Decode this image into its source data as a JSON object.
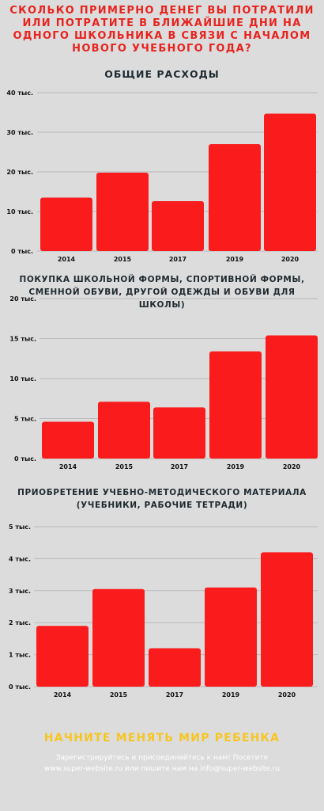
{
  "headline": "СКОЛЬКО ПРИМЕРНО ДЕНЕГ ВЫ ПОТРАТИЛИ ИЛИ ПОТРАТИТЕ В БЛИЖАЙШИЕ ДНИ НА ОДНОГО ШКОЛЬНИКА В СВЯЗИ С НАЧАЛОМ НОВОГО УЧЕБНОГО ГОДА?",
  "chart_data": [
    {
      "type": "bar",
      "title": "ОБЩИЕ РАСХОДЫ",
      "categories": [
        "2014",
        "2015",
        "2017",
        "2019",
        "2020"
      ],
      "values": [
        13.5,
        19.8,
        12.6,
        27,
        34.7
      ],
      "ylim": [
        0,
        40
      ],
      "yticks": [
        "0 тыс.",
        "10 тыс.",
        "20 тыс.",
        "30 тыс.",
        "40 тыс."
      ],
      "grid": true,
      "bar_color": "#fa1c1c"
    },
    {
      "type": "bar",
      "title": "ПОКУПКА ШКОЛЬНОЙ ФОРМЫ, СПОРТИВНОЙ ФОРМЫ, СМЕННОЙ ОБУВИ, ДРУГОЙ ОДЕЖДЫ И ОБУВИ ДЛЯ ШКОЛЫ)",
      "categories": [
        "2014",
        "2015",
        "2017",
        "2019",
        "2020"
      ],
      "values": [
        4.6,
        7.1,
        6.4,
        13.4,
        15.4
      ],
      "ylim": [
        0,
        20
      ],
      "yticks": [
        "0 тыс.",
        "5 тыс.",
        "10 тыс.",
        "15 тыс.",
        "20 тыс."
      ],
      "grid": true,
      "bar_color": "#fa1c1c"
    },
    {
      "type": "bar",
      "title": "ПРИОБРЕТЕНИЕ УЧЕБНО-МЕТОДИЧЕСКОГО МАТЕРИАЛА (УЧЕБНИКИ, РАБОЧИЕ ТЕТРАДИ)",
      "categories": [
        "2014",
        "2015",
        "2017",
        "2019",
        "2020"
      ],
      "values": [
        1.9,
        3.05,
        1.2,
        3.1,
        4.2
      ],
      "ylim": [
        0,
        5
      ],
      "yticks": [
        "0 тыс.",
        "1 тыс.",
        "2 тыс.",
        "3 тыс.",
        "4 тыс.",
        "5 тыс."
      ],
      "grid": true,
      "bar_color": "#fa1c1c"
    }
  ],
  "cta": {
    "title": "НАЧНИТЕ МЕНЯТЬ МИР РЕБЕНКА",
    "line1": "Зарегистрируйтесь и присоединяйтесь к нам! Посетите",
    "line2": "www.super-website.ru или пишите нам на info@super-website.ru"
  }
}
